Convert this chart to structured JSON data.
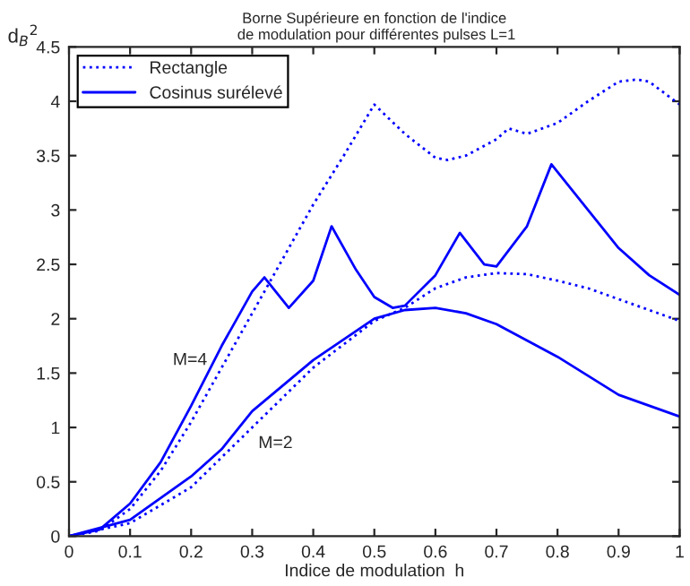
{
  "chart_data": {
    "type": "line",
    "title": "Borne Supérieure en fonction de l'indice\n de modulation pour différentes pulses L=1",
    "xlabel": "Indice de modulation  h",
    "ylabel": "d$_{B}$$^{2}$",
    "xlim": [
      0,
      1
    ],
    "ylim": [
      0,
      4.5
    ],
    "xticks": [
      0,
      0.1,
      0.2,
      0.3,
      0.4,
      0.5,
      0.6,
      0.7,
      0.8,
      0.9,
      1
    ],
    "yticks": [
      0,
      0.5,
      1,
      1.5,
      2,
      2.5,
      3,
      3.5,
      4,
      4.5
    ],
    "grid": false,
    "legend": "top left",
    "marker": "none",
    "series": [
      {
        "name": "Rectangle",
        "color": "#0000ff",
        "line_style": "dotted",
        "x": [
          0,
          0.05,
          0.1,
          0.15,
          0.2,
          0.25,
          0.3,
          0.35,
          0.4,
          0.45,
          0.5,
          0.55,
          0.6,
          0.62,
          0.65,
          0.7,
          0.72,
          0.75,
          0.8,
          0.85,
          0.9,
          0.93,
          0.95,
          1
        ],
        "values": [
          0,
          0.05,
          0.25,
          0.6,
          1.05,
          1.55,
          2.05,
          2.55,
          3.05,
          3.5,
          3.97,
          3.7,
          3.48,
          3.46,
          3.5,
          3.65,
          3.75,
          3.7,
          3.8,
          4.0,
          4.18,
          4.2,
          4.18,
          3.97
        ]
      },
      {
        "name": "Cosinus surélevé",
        "color": "#0000ff",
        "line_style": "solid",
        "x": [
          0,
          0.05,
          0.1,
          0.15,
          0.2,
          0.25,
          0.3,
          0.32,
          0.36,
          0.4,
          0.43,
          0.47,
          0.5,
          0.53,
          0.55,
          0.6,
          0.64,
          0.68,
          0.7,
          0.75,
          0.79,
          0.85,
          0.9,
          0.95,
          1
        ],
        "values": [
          0,
          0.06,
          0.3,
          0.68,
          1.2,
          1.75,
          2.25,
          2.38,
          2.1,
          2.35,
          2.85,
          2.45,
          2.2,
          2.1,
          2.12,
          2.4,
          2.79,
          2.5,
          2.48,
          2.85,
          3.42,
          3.0,
          2.65,
          2.4,
          2.22
        ]
      },
      {
        "color": "#0000ff",
        "line_style": "dotted",
        "x": [
          0,
          0.1,
          0.2,
          0.3,
          0.4,
          0.5,
          0.55,
          0.6,
          0.65,
          0.7,
          0.75,
          0.8,
          0.85,
          0.9,
          0.95,
          1
        ],
        "values": [
          0,
          0.12,
          0.45,
          1.0,
          1.55,
          1.98,
          2.1,
          2.28,
          2.38,
          2.42,
          2.41,
          2.35,
          2.28,
          2.18,
          2.08,
          1.98
        ]
      },
      {
        "color": "#0000ff",
        "line_style": "solid",
        "x": [
          0,
          0.1,
          0.2,
          0.25,
          0.3,
          0.4,
          0.5,
          0.55,
          0.6,
          0.65,
          0.7,
          0.8,
          0.9,
          1
        ],
        "values": [
          0,
          0.15,
          0.55,
          0.8,
          1.15,
          1.62,
          2.0,
          2.08,
          2.1,
          2.05,
          1.95,
          1.65,
          1.3,
          1.1
        ]
      }
    ],
    "annotations": [
      "M=4",
      "M=2"
    ]
  }
}
